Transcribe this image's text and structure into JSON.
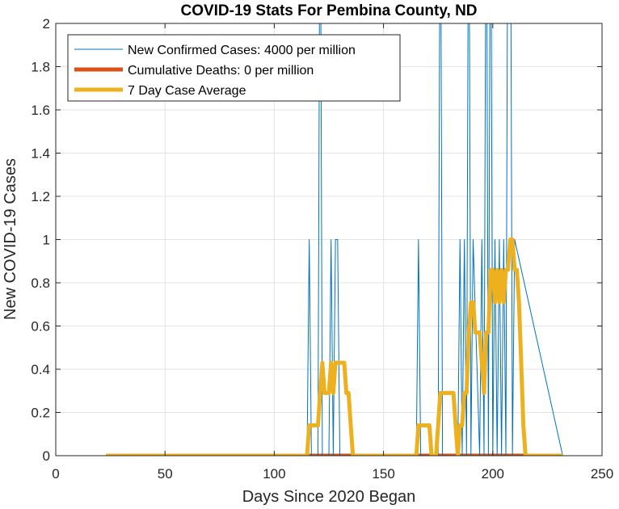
{
  "chart_data": {
    "type": "line",
    "title": "COVID-19 Stats For Pembina County, ND",
    "xlabel": "Days Since 2020 Began",
    "ylabel": "New COVID-19 Cases",
    "xlim": [
      0,
      250
    ],
    "ylim": [
      0,
      2
    ],
    "xticks": [
      0,
      50,
      100,
      150,
      200,
      250
    ],
    "yticks": [
      0,
      0.2,
      0.4,
      0.6,
      0.8,
      1,
      1.2,
      1.4,
      1.6,
      1.8,
      2
    ],
    "grid": true,
    "legend_position": "top-left",
    "series": [
      {
        "name": "New Confirmed Cases: 4000 per million",
        "color": "#0072BD",
        "line_style": "thin",
        "x": [
          23,
          115,
          116,
          117,
          120,
          121,
          122,
          125,
          126,
          127,
          128,
          129,
          130,
          165,
          166,
          167,
          175,
          176,
          177,
          184,
          185,
          186,
          187,
          188,
          189,
          190,
          191,
          194,
          195,
          196,
          197,
          198,
          199,
          200,
          201,
          202,
          203,
          204,
          205,
          206,
          207,
          208,
          209,
          210,
          232
        ],
        "y": [
          0,
          0,
          1,
          0,
          0,
          3,
          0,
          0,
          1,
          0,
          1,
          1,
          0,
          0,
          1,
          0,
          0,
          3,
          0,
          0,
          1,
          0,
          1,
          0,
          3,
          0,
          1,
          0,
          1,
          0,
          3,
          0,
          3,
          0,
          1,
          0,
          1,
          0,
          1,
          0,
          3,
          3,
          0,
          1,
          0
        ]
      },
      {
        "name": "Cumulative Deaths: 0 per million",
        "color": "#D95319",
        "line_style": "thick",
        "x": [
          23,
          232
        ],
        "y": [
          0,
          0
        ]
      },
      {
        "name": "7 Day Case Average",
        "color": "#EDB120",
        "line_style": "thick",
        "x": [
          23,
          115,
          116,
          120,
          121,
          122,
          123,
          124,
          125,
          126,
          127,
          128,
          129,
          130,
          131,
          132,
          133,
          134,
          135,
          136,
          137,
          165,
          166,
          167,
          171,
          172,
          174,
          175,
          176,
          182,
          183,
          184,
          185,
          186,
          187,
          188,
          189,
          190,
          191,
          192,
          193,
          194,
          195,
          196,
          197,
          198,
          199,
          200,
          201,
          202,
          203,
          204,
          205,
          206,
          207,
          208,
          209,
          210,
          211,
          212,
          213,
          214,
          215,
          216,
          232
        ],
        "y": [
          0,
          0,
          0.14,
          0.14,
          0.29,
          0.43,
          0.29,
          0.29,
          0.29,
          0.43,
          0.29,
          0.43,
          0.43,
          0.43,
          0.43,
          0.43,
          0.29,
          0.29,
          0.14,
          0,
          0,
          0,
          0.14,
          0.14,
          0.14,
          0,
          0,
          0.14,
          0.29,
          0.29,
          0.14,
          0,
          0.14,
          0.14,
          0.29,
          0.29,
          0.57,
          0.71,
          0.71,
          0.57,
          0.57,
          0.57,
          0.43,
          0.29,
          0.57,
          0.57,
          0.86,
          0.86,
          0.71,
          0.86,
          0.71,
          0.86,
          0.71,
          0.86,
          0.86,
          1.0,
          1.0,
          0.86,
          0.86,
          0.71,
          0.43,
          0.14,
          0,
          0,
          0
        ]
      }
    ]
  }
}
